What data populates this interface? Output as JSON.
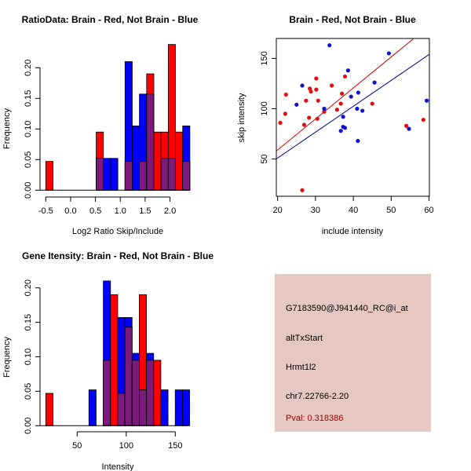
{
  "colors": {
    "red": "#ff0000",
    "blue": "#0000ff",
    "overlap": "#7b1a7b",
    "info_bg": "#e6c8c2",
    "pval": "#a00000",
    "red_line": "#cc0000",
    "blue_line": "#00008b"
  },
  "chart_data": [
    {
      "type": "bar",
      "title": "RatioData: Brain - Red, Not Brain - Blue",
      "xlabel": "Log2 Ratio Skip/Include",
      "ylabel": "Frequency",
      "bin_start": -0.5,
      "bin_width": 0.145,
      "xticks": [
        "-0.5",
        "0.0",
        "0.5",
        "1.0",
        "1.5",
        "2.0"
      ],
      "xtick_values": [
        -0.5,
        0,
        0.5,
        1.0,
        1.5,
        2.0
      ],
      "yticks": [
        "0.00",
        "0.05",
        "0.10",
        "0.15",
        "0.20"
      ],
      "ytick_values": [
        0,
        0.05,
        0.1,
        0.15,
        0.2
      ],
      "series": [
        {
          "name": "Brain",
          "color": "red",
          "values": [
            0.047,
            0,
            0,
            0,
            0,
            0,
            0,
            0.095,
            0,
            0,
            0,
            0.047,
            0,
            0.047,
            0.19,
            0.095,
            0.095,
            0.238,
            0.095,
            0.047
          ]
        },
        {
          "name": "Not Brain",
          "color": "blue",
          "values": [
            0,
            0,
            0,
            0,
            0,
            0,
            0,
            0.052,
            0.052,
            0.052,
            0,
            0.21,
            0.105,
            0.157,
            0.157,
            0,
            0.052,
            0.052,
            0,
            0.105
          ]
        }
      ]
    },
    {
      "type": "scatter",
      "title": "Brain - Red, Not Brain - Blue",
      "xlabel": "include intensity",
      "ylabel": "skip intensity",
      "xlim": [
        19.65,
        60.1
      ],
      "ylim": [
        13,
        169.8
      ],
      "xticks": [
        "20",
        "30",
        "40",
        "50",
        "60"
      ],
      "xtick_values": [
        20,
        30,
        40,
        50,
        60
      ],
      "yticks": [
        "50",
        "100",
        "150"
      ],
      "ytick_values": [
        50,
        100,
        150
      ],
      "series": [
        {
          "name": "Brain",
          "color": "red",
          "fit": {
            "intercept": -2.6,
            "slope": 3.08
          },
          "points": [
            [
              20.7,
              86
            ],
            [
              22,
              95
            ],
            [
              22.2,
              114
            ],
            [
              26.5,
              19
            ],
            [
              27,
              84
            ],
            [
              27.5,
              108
            ],
            [
              28.3,
              91
            ],
            [
              28.5,
              120
            ],
            [
              28.8,
              117
            ],
            [
              30.2,
              130
            ],
            [
              30.2,
              119
            ],
            [
              30.5,
              90
            ],
            [
              30.7,
              108
            ],
            [
              32.3,
              97
            ],
            [
              34.3,
              123
            ],
            [
              35.7,
              99
            ],
            [
              36.7,
              105
            ],
            [
              37,
              115
            ],
            [
              37.8,
              132
            ],
            [
              45,
              105
            ],
            [
              54,
              83
            ],
            [
              58.5,
              89
            ]
          ]
        },
        {
          "name": "Not Brain",
          "color": "blue",
          "fit": {
            "intercept": -0.4,
            "slope": 2.57
          },
          "points": [
            [
              25,
              104
            ],
            [
              26.5,
              123
            ],
            [
              32.3,
              100
            ],
            [
              33.7,
              163
            ],
            [
              36.7,
              78
            ],
            [
              37.3,
              92
            ],
            [
              37.3,
              82
            ],
            [
              37.8,
              81
            ],
            [
              38.6,
              138
            ],
            [
              39.4,
              112
            ],
            [
              41,
              100
            ],
            [
              41.3,
              116
            ],
            [
              42.4,
              98
            ],
            [
              41.2,
              68
            ],
            [
              45.6,
              126
            ],
            [
              49.4,
              155
            ],
            [
              54.7,
              80
            ],
            [
              59.4,
              108
            ]
          ]
        }
      ]
    },
    {
      "type": "bar",
      "title": "Gene Itensity: Brain - Red, Not Brain - Blue",
      "xlabel": "Intensity",
      "ylabel": "Frequency",
      "bin_start": 18,
      "bin_width": 7.33,
      "xticks": [
        "50",
        "100",
        "150"
      ],
      "xtick_values": [
        50,
        100,
        150
      ],
      "yticks": [
        "0.00",
        "0.05",
        "0.10",
        "0.15",
        "0.20"
      ],
      "ytick_values": [
        0,
        0.05,
        0.1,
        0.15,
        0.2
      ],
      "series": [
        {
          "name": "Brain",
          "color": "red",
          "values": [
            0.047,
            0,
            0,
            0,
            0,
            0,
            0,
            0,
            0.095,
            0.19,
            0.047,
            0.143,
            0.095,
            0.19,
            0.095,
            0.095,
            0,
            0,
            0,
            0
          ]
        },
        {
          "name": "Not Brain",
          "color": "blue",
          "values": [
            0,
            0,
            0,
            0,
            0,
            0,
            0.052,
            0,
            0.21,
            0,
            0.157,
            0.157,
            0.105,
            0.052,
            0.105,
            0,
            0.052,
            0,
            0.052,
            0.052
          ]
        }
      ]
    }
  ],
  "info": {
    "probe": "G7183590@J941440_RC@i_at",
    "event": "altTxStart",
    "gene": "Hrmt1l2",
    "location": "chr7.22766-2.20",
    "pval": "Pval: 0.318386"
  }
}
